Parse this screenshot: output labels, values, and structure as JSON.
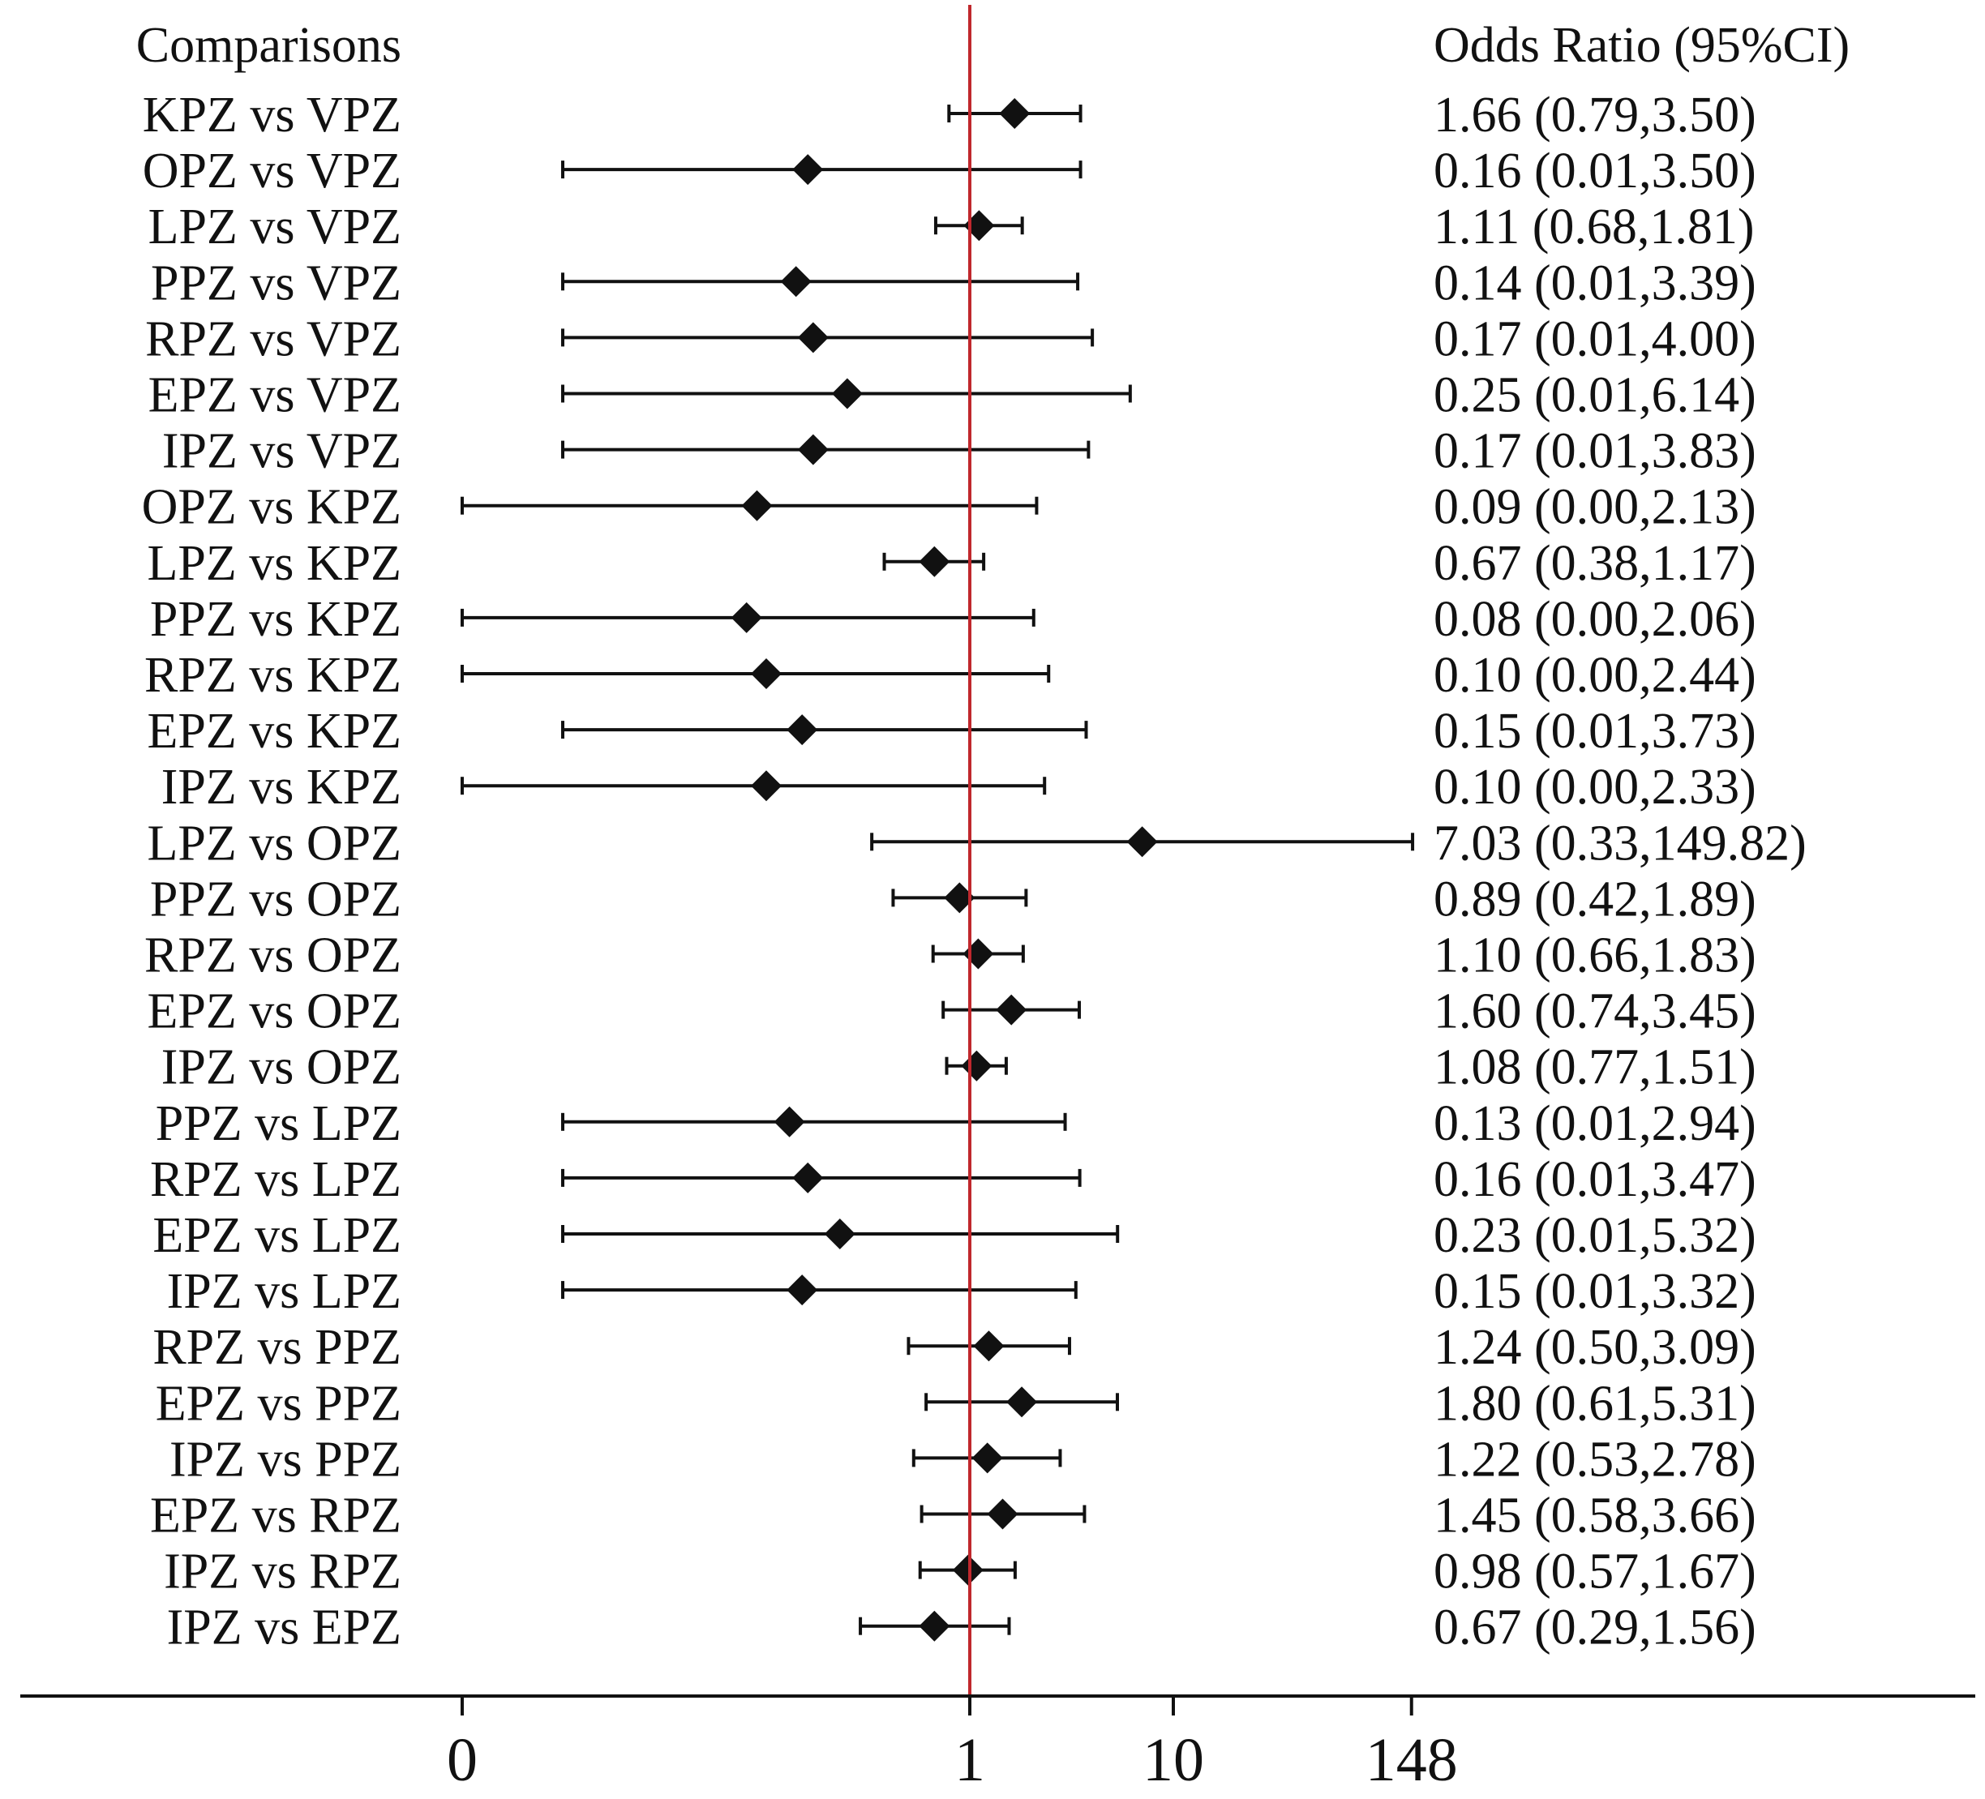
{
  "chart_data": {
    "type": "forest",
    "title": "",
    "left_header": "Comparisons",
    "right_header": "Odds Ratio (95%CI)",
    "reference_value": 1,
    "x_scale": "log",
    "x_ticks": [
      {
        "value": 0,
        "label": "0"
      },
      {
        "value": 1,
        "label": "1"
      },
      {
        "value": 10,
        "label": "10"
      },
      {
        "value": 148,
        "label": "148"
      }
    ],
    "colors": {
      "marker": "#111111",
      "reference_line": "#c0282d",
      "axis": "#111111"
    },
    "rows": [
      {
        "label": "KPZ vs VPZ",
        "or": 1.66,
        "lo": 0.79,
        "hi": 3.5,
        "text": "1.66 (0.79,3.50)"
      },
      {
        "label": "OPZ vs VPZ",
        "or": 0.16,
        "lo": 0.01,
        "hi": 3.5,
        "text": "0.16 (0.01,3.50)"
      },
      {
        "label": "LPZ vs VPZ",
        "or": 1.11,
        "lo": 0.68,
        "hi": 1.81,
        "text": "1.11 (0.68,1.81)"
      },
      {
        "label": "PPZ vs VPZ",
        "or": 0.14,
        "lo": 0.01,
        "hi": 3.39,
        "text": "0.14 (0.01,3.39)"
      },
      {
        "label": "RPZ vs VPZ",
        "or": 0.17,
        "lo": 0.01,
        "hi": 4.0,
        "text": "0.17 (0.01,4.00)"
      },
      {
        "label": "EPZ vs VPZ",
        "or": 0.25,
        "lo": 0.01,
        "hi": 6.14,
        "text": "0.25 (0.01,6.14)"
      },
      {
        "label": "IPZ vs VPZ",
        "or": 0.17,
        "lo": 0.01,
        "hi": 3.83,
        "text": "0.17 (0.01,3.83)"
      },
      {
        "label": "OPZ vs KPZ",
        "or": 0.09,
        "lo": 0.0,
        "hi": 2.13,
        "text": "0.09 (0.00,2.13)"
      },
      {
        "label": "LPZ vs KPZ",
        "or": 0.67,
        "lo": 0.38,
        "hi": 1.17,
        "text": "0.67 (0.38,1.17)"
      },
      {
        "label": "PPZ vs KPZ",
        "or": 0.08,
        "lo": 0.0,
        "hi": 2.06,
        "text": "0.08 (0.00,2.06)"
      },
      {
        "label": "RPZ vs KPZ",
        "or": 0.1,
        "lo": 0.0,
        "hi": 2.44,
        "text": "0.10 (0.00,2.44)"
      },
      {
        "label": "EPZ vs KPZ",
        "or": 0.15,
        "lo": 0.01,
        "hi": 3.73,
        "text": "0.15 (0.01,3.73)"
      },
      {
        "label": "IPZ vs KPZ",
        "or": 0.1,
        "lo": 0.0,
        "hi": 2.33,
        "text": "0.10 (0.00,2.33)"
      },
      {
        "label": "LPZ vs OPZ",
        "or": 7.03,
        "lo": 0.33,
        "hi": 149.82,
        "text": "7.03 (0.33,149.82)"
      },
      {
        "label": "PPZ vs OPZ",
        "or": 0.89,
        "lo": 0.42,
        "hi": 1.89,
        "text": "0.89 (0.42,1.89)"
      },
      {
        "label": "RPZ vs OPZ",
        "or": 1.1,
        "lo": 0.66,
        "hi": 1.83,
        "text": "1.10 (0.66,1.83)"
      },
      {
        "label": "EPZ vs OPZ",
        "or": 1.6,
        "lo": 0.74,
        "hi": 3.45,
        "text": "1.60 (0.74,3.45)"
      },
      {
        "label": "IPZ vs OPZ",
        "or": 1.08,
        "lo": 0.77,
        "hi": 1.51,
        "text": "1.08 (0.77,1.51)"
      },
      {
        "label": "PPZ vs LPZ",
        "or": 0.13,
        "lo": 0.01,
        "hi": 2.94,
        "text": "0.13 (0.01,2.94)"
      },
      {
        "label": "RPZ vs LPZ",
        "or": 0.16,
        "lo": 0.01,
        "hi": 3.47,
        "text": "0.16 (0.01,3.47)"
      },
      {
        "label": "EPZ vs LPZ",
        "or": 0.23,
        "lo": 0.01,
        "hi": 5.32,
        "text": "0.23 (0.01,5.32)"
      },
      {
        "label": "IPZ vs LPZ",
        "or": 0.15,
        "lo": 0.01,
        "hi": 3.32,
        "text": "0.15 (0.01,3.32)"
      },
      {
        "label": "RPZ vs PPZ",
        "or": 1.24,
        "lo": 0.5,
        "hi": 3.09,
        "text": "1.24 (0.50,3.09)"
      },
      {
        "label": "EPZ vs PPZ",
        "or": 1.8,
        "lo": 0.61,
        "hi": 5.31,
        "text": "1.80 (0.61,5.31)"
      },
      {
        "label": "IPZ vs PPZ",
        "or": 1.22,
        "lo": 0.53,
        "hi": 2.78,
        "text": "1.22 (0.53,2.78)"
      },
      {
        "label": "EPZ vs RPZ",
        "or": 1.45,
        "lo": 0.58,
        "hi": 3.66,
        "text": "1.45 (0.58,3.66)"
      },
      {
        "label": "IPZ vs RPZ",
        "or": 0.98,
        "lo": 0.57,
        "hi": 1.67,
        "text": "0.98 (0.57,1.67)"
      },
      {
        "label": "IPZ vs EPZ",
        "or": 0.67,
        "lo": 0.29,
        "hi": 1.56,
        "text": "0.67 (0.29,1.56)"
      }
    ]
  }
}
